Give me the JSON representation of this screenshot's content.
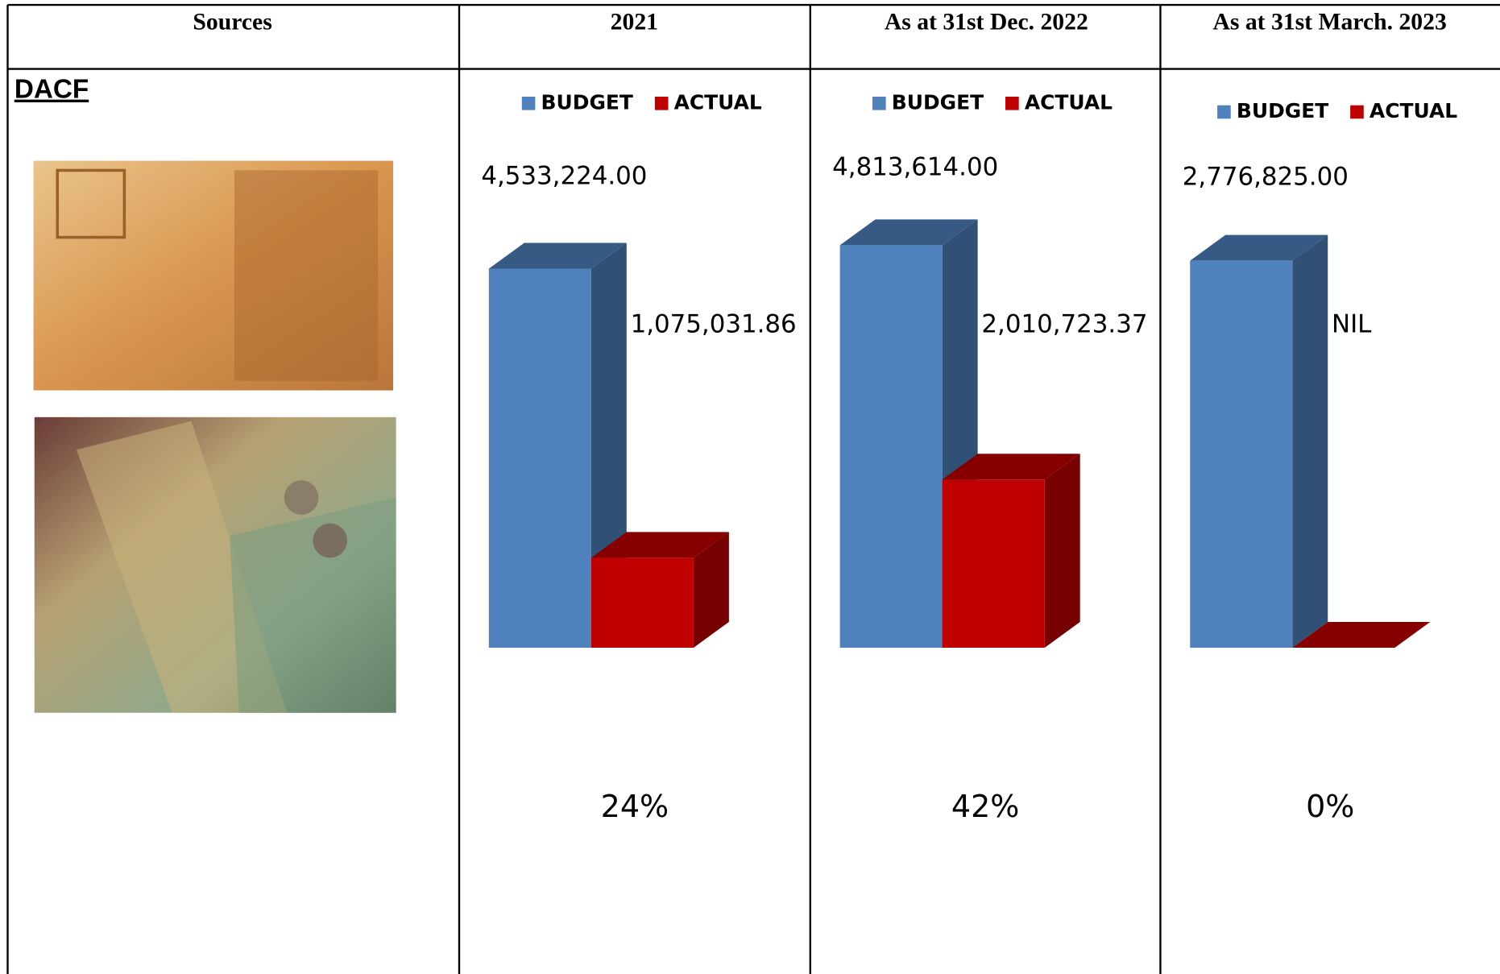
{
  "table": {
    "headers": [
      "Sources",
      "2021",
      "As at 31st Dec. 2022",
      "As at 31st March. 2023"
    ],
    "row_label": "DACF"
  },
  "chart_data": [
    {
      "type": "bar",
      "series": [
        {
          "name": "BUDGET",
          "color": "#4f81bd",
          "values": [
            4533224
          ],
          "value_labels": [
            "4,533,224.00"
          ]
        },
        {
          "name": "ACTUAL",
          "color": "#c00000",
          "values": [
            1075031.86
          ],
          "value_labels": [
            "1,075,031.86"
          ]
        }
      ],
      "ylim": [
        0,
        5000000
      ],
      "annotation": "24%"
    },
    {
      "type": "bar",
      "series": [
        {
          "name": "BUDGET",
          "color": "#4f81bd",
          "values": [
            4813614
          ],
          "value_labels": [
            "4,813,614.00"
          ]
        },
        {
          "name": "ACTUAL",
          "color": "#c00000",
          "values": [
            2010723.37
          ],
          "value_labels": [
            "2,010,723.37"
          ]
        }
      ],
      "ylim": [
        0,
        5000000
      ],
      "annotation": "42%"
    },
    {
      "type": "bar",
      "series": [
        {
          "name": "BUDGET",
          "color": "#4f81bd",
          "values": [
            2776825
          ],
          "value_labels": [
            "2,776,825.00"
          ]
        },
        {
          "name": "ACTUAL",
          "color": "#c00000",
          "values": [
            0
          ],
          "value_labels": [
            "NIL"
          ]
        }
      ],
      "ylim": [
        0,
        3000000
      ],
      "annotation": "0%"
    }
  ]
}
